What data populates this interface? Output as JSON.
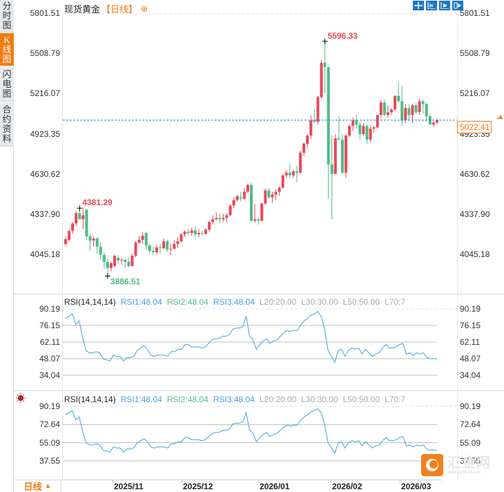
{
  "header": {
    "instrument": "现货黄金",
    "period_tag": "【日线】",
    "add_icon": "⊕"
  },
  "toolbar": {
    "buttons": [
      {
        "name": "crosshair-button",
        "icon": "crosshair-icon"
      },
      {
        "name": "range-zoom-button",
        "icon": "range-icon"
      },
      {
        "name": "autoscroll-button",
        "icon": "play-axis-icon",
        "active": true
      },
      {
        "name": "jump-latest-button",
        "icon": "jump-right-icon"
      }
    ]
  },
  "sidebar": {
    "tabs": [
      {
        "label": "分时图",
        "chars": [
          "分",
          "时",
          "图"
        ],
        "active": false
      },
      {
        "label": "K线图",
        "chars": [
          "K",
          "线",
          "图"
        ],
        "active": true
      },
      {
        "label": "闪电图",
        "chars": [
          "闪",
          "电",
          "图"
        ],
        "active": false
      },
      {
        "label": "合约资料",
        "chars": [
          "合",
          "约",
          "资",
          "料"
        ],
        "active": false
      }
    ]
  },
  "price_panel": {
    "y_ticks": [
      "5801.51",
      "5508.79",
      "5216.07",
      "4923.35",
      "4630.62",
      "4337.90",
      "4045.18"
    ],
    "current_price": "5022.41",
    "high_label": "5596.33",
    "high2_label": "4381.29",
    "low_label": "3886.51"
  },
  "rsi_panels": [
    {
      "label": "RSI(14,14,14)",
      "rsi1": "RSI1:48.04",
      "rsi2": "RSI2:48.04",
      "rsi3": "RSI3:48.04",
      "levels": [
        "L20:20.00",
        "L30:30.00",
        "L50:50.00",
        "L70:7"
      ],
      "y_ticks": [
        "90.19",
        "76.15",
        "62.11",
        "48.07",
        "34.04"
      ]
    },
    {
      "label": "RSI(14,14,14)",
      "rsi1": "RSI1:48.04",
      "rsi2": "RSI2:48.04",
      "rsi3": "RSI3:48.04",
      "levels": [
        "L20:20.00",
        "L30:30.00",
        "L50:50.00",
        "L70:7"
      ],
      "y_ticks": [
        "90.19",
        "72.64",
        "55.09",
        "37.55"
      ]
    }
  ],
  "footer": {
    "period_selector": "日线",
    "period_arrow": "▲",
    "dates": [
      "2025/11",
      "2025/12",
      "2026/01",
      "2026/02",
      "2026/03"
    ]
  },
  "logo": {
    "name": "汇金网",
    "url": "www.gold678.com"
  },
  "colors": {
    "up": "#e8485a",
    "down": "#4fbb85",
    "accent": "#f47a12",
    "rsi_line": "#3aa9d8",
    "current_line": "#1e7fd8"
  },
  "chart_data": [
    {
      "type": "candlestick",
      "title": "现货黄金【日线】",
      "xlabel": "",
      "ylabel": "",
      "x_tick_labels": [
        "2025/11",
        "2025/12",
        "2026/01",
        "2026/02",
        "2026/03"
      ],
      "ylim": [
        3800,
        5850
      ],
      "annotations": {
        "max": 5596.33,
        "local_high": 4381.29,
        "min": 3886.51,
        "last": 5022.41
      },
      "ohlc": [
        [
          4120,
          4175,
          4105,
          4155
        ],
        [
          4150,
          4230,
          4135,
          4215
        ],
        [
          4215,
          4280,
          4195,
          4270
        ],
        [
          4270,
          4360,
          4250,
          4345
        ],
        [
          4345,
          4381,
          4300,
          4300
        ],
        [
          4300,
          4380,
          4230,
          4330
        ],
        [
          4370,
          4375,
          4150,
          4175
        ],
        [
          4175,
          4190,
          4070,
          4145
        ],
        [
          4145,
          4175,
          4100,
          4160
        ],
        [
          4160,
          4170,
          4050,
          4100
        ],
        [
          4100,
          4130,
          4005,
          4040
        ],
        [
          4040,
          4060,
          3940,
          3990
        ],
        [
          3990,
          4010,
          3886,
          3945
        ],
        [
          3945,
          3990,
          3920,
          3980
        ],
        [
          3960,
          4040,
          3950,
          4035
        ],
        [
          4020,
          4040,
          3975,
          4000
        ],
        [
          4000,
          4020,
          3970,
          4005
        ],
        [
          4005,
          4010,
          3950,
          3990
        ],
        [
          3990,
          4020,
          3950,
          3960
        ],
        [
          3960,
          4050,
          3955,
          4035
        ],
        [
          4035,
          4140,
          4025,
          4130
        ],
        [
          4130,
          4180,
          4120,
          4150
        ],
        [
          4150,
          4205,
          4120,
          4180
        ],
        [
          4200,
          4205,
          4080,
          4110
        ],
        [
          4110,
          4120,
          4050,
          4070
        ],
        [
          4070,
          4100,
          4040,
          4060
        ],
        [
          4060,
          4110,
          4040,
          4095
        ],
        [
          4095,
          4120,
          4050,
          4090
        ],
        [
          4090,
          4160,
          4080,
          4140
        ],
        [
          4140,
          4150,
          4060,
          4080
        ],
        [
          4080,
          4120,
          4040,
          4085
        ],
        [
          4085,
          4150,
          4080,
          4120
        ],
        [
          4120,
          4170,
          4090,
          4140
        ],
        [
          4140,
          4200,
          4130,
          4190
        ],
        [
          4190,
          4220,
          4170,
          4210
        ],
        [
          4210,
          4230,
          4180,
          4200
        ],
        [
          4200,
          4240,
          4180,
          4220
        ],
        [
          4220,
          4245,
          4170,
          4190
        ],
        [
          4190,
          4230,
          4170,
          4200
        ],
        [
          4200,
          4215,
          4180,
          4195
        ],
        [
          4195,
          4235,
          4185,
          4225
        ],
        [
          4225,
          4290,
          4210,
          4280
        ],
        [
          4280,
          4330,
          4260,
          4300
        ],
        [
          4300,
          4350,
          4290,
          4310
        ],
        [
          4310,
          4340,
          4270,
          4300
        ],
        [
          4300,
          4340,
          4280,
          4310
        ],
        [
          4310,
          4345,
          4280,
          4330
        ],
        [
          4330,
          4410,
          4325,
          4400
        ],
        [
          4400,
          4460,
          4380,
          4440
        ],
        [
          4440,
          4475,
          4430,
          4470
        ],
        [
          4460,
          4500,
          4430,
          4450
        ],
        [
          4450,
          4530,
          4440,
          4500
        ],
        [
          4500,
          4560,
          4490,
          4550
        ],
        [
          4550,
          4570,
          4280,
          4290
        ],
        [
          4290,
          4410,
          4275,
          4300
        ],
        [
          4300,
          4310,
          4260,
          4290
        ],
        [
          4290,
          4420,
          4285,
          4415
        ],
        [
          4415,
          4525,
          4405,
          4510
        ],
        [
          4510,
          4530,
          4450,
          4460
        ],
        [
          4460,
          4500,
          4420,
          4480
        ],
        [
          4480,
          4520,
          4440,
          4500
        ],
        [
          4500,
          4540,
          4470,
          4530
        ],
        [
          4530,
          4630,
          4525,
          4620
        ],
        [
          4620,
          4660,
          4600,
          4640
        ],
        [
          4640,
          4700,
          4600,
          4620
        ],
        [
          4620,
          4660,
          4600,
          4650
        ],
        [
          4650,
          4690,
          4570,
          4640
        ],
        [
          4640,
          4800,
          4630,
          4785
        ],
        [
          4785,
          4860,
          4760,
          4850
        ],
        [
          4850,
          4920,
          4820,
          4910
        ],
        [
          4910,
          5060,
          4885,
          5020
        ],
        [
          5020,
          5100,
          5000,
          5010
        ],
        [
          5010,
          5200,
          4990,
          5190
        ],
        [
          5190,
          5460,
          5180,
          5440
        ],
        [
          5440,
          5596,
          5220,
          5410
        ],
        [
          5410,
          5370,
          4450,
          4700
        ],
        [
          4700,
          4910,
          4300,
          4630
        ],
        [
          4630,
          4920,
          4630,
          4890
        ],
        [
          4890,
          5050,
          4880,
          4880
        ],
        [
          4880,
          4920,
          4630,
          4640
        ],
        [
          4640,
          4920,
          4600,
          4910
        ],
        [
          4910,
          4990,
          4900,
          4980
        ],
        [
          4980,
          5040,
          4940,
          5020
        ],
        [
          5020,
          5060,
          4960,
          4990
        ],
        [
          4990,
          5010,
          4880,
          4920
        ],
        [
          4920,
          5000,
          4910,
          4980
        ],
        [
          4980,
          4990,
          4850,
          4880
        ],
        [
          4880,
          4980,
          4860,
          4960
        ],
        [
          4960,
          4980,
          4930,
          4970
        ],
        [
          4970,
          5060,
          4960,
          5060
        ],
        [
          5060,
          5170,
          5040,
          5150
        ],
        [
          5150,
          5170,
          5050,
          5060
        ],
        [
          5060,
          5130,
          5040,
          5080
        ],
        [
          5080,
          5110,
          5060,
          5100
        ],
        [
          5100,
          5200,
          5090,
          5200
        ],
        [
          5200,
          5300,
          5150,
          5160
        ],
        [
          5160,
          5270,
          4980,
          5020
        ],
        [
          5020,
          5140,
          5000,
          5110
        ],
        [
          5110,
          5140,
          5020,
          5060
        ],
        [
          5060,
          5140,
          5000,
          5130
        ],
        [
          5130,
          5150,
          5070,
          5080
        ],
        [
          5080,
          5180,
          5060,
          5160
        ],
        [
          5160,
          5170,
          5070,
          5140
        ],
        [
          5140,
          5150,
          5010,
          5050
        ],
        [
          5050,
          5070,
          4990,
          4990
        ],
        [
          4990,
          5010,
          4970,
          5005
        ],
        [
          5005,
          5030,
          4990,
          5022
        ]
      ]
    },
    {
      "type": "line",
      "title": "RSI(14,14,14)",
      "ylim": [
        30,
        95
      ],
      "y_ticks": [
        90.19,
        76.15,
        62.11,
        48.07,
        34.04
      ],
      "series": [
        {
          "name": "RSI1",
          "values": [
            82,
            84,
            86,
            77,
            80,
            66,
            55,
            53,
            53,
            54,
            53,
            48,
            47,
            46,
            51,
            50,
            50,
            46,
            49,
            49,
            50,
            55,
            57,
            59,
            56,
            51,
            50,
            51,
            51,
            51,
            50,
            54,
            54,
            56,
            56,
            60,
            60,
            58,
            58,
            58,
            57,
            58,
            61,
            64,
            65,
            65,
            67,
            67,
            68,
            73,
            74,
            74,
            75,
            84,
            67,
            64,
            56,
            60,
            63,
            65,
            61,
            63,
            64,
            67,
            70,
            72,
            71,
            72,
            72,
            77,
            80,
            82,
            85,
            86,
            88,
            84,
            73,
            55,
            50,
            45,
            55,
            56,
            50,
            55,
            57,
            56,
            57,
            52,
            56,
            53,
            50,
            52,
            53,
            57,
            60,
            57,
            57,
            58,
            60,
            61,
            52,
            53,
            51,
            53,
            52,
            53,
            49,
            48,
            48,
            48
          ]
        }
      ]
    },
    {
      "type": "line",
      "title": "RSI(14,14,14)",
      "ylim": [
        30,
        95
      ],
      "y_ticks": [
        90.19,
        72.64,
        55.09,
        37.55
      ],
      "series": [
        {
          "name": "RSI1",
          "values": [
            82,
            84,
            86,
            77,
            80,
            66,
            55,
            53,
            53,
            54,
            53,
            48,
            47,
            46,
            51,
            50,
            50,
            46,
            49,
            49,
            50,
            55,
            57,
            59,
            56,
            51,
            50,
            51,
            51,
            51,
            50,
            54,
            54,
            56,
            56,
            60,
            60,
            58,
            58,
            58,
            57,
            58,
            61,
            64,
            65,
            65,
            67,
            67,
            68,
            73,
            74,
            74,
            75,
            84,
            67,
            64,
            56,
            60,
            63,
            65,
            61,
            63,
            64,
            67,
            70,
            72,
            71,
            72,
            72,
            77,
            80,
            82,
            85,
            86,
            88,
            84,
            73,
            55,
            50,
            45,
            55,
            56,
            50,
            55,
            57,
            56,
            57,
            52,
            56,
            53,
            50,
            52,
            53,
            57,
            60,
            57,
            57,
            58,
            60,
            61,
            52,
            53,
            51,
            53,
            52,
            53,
            49,
            48,
            48,
            48
          ]
        }
      ]
    }
  ]
}
